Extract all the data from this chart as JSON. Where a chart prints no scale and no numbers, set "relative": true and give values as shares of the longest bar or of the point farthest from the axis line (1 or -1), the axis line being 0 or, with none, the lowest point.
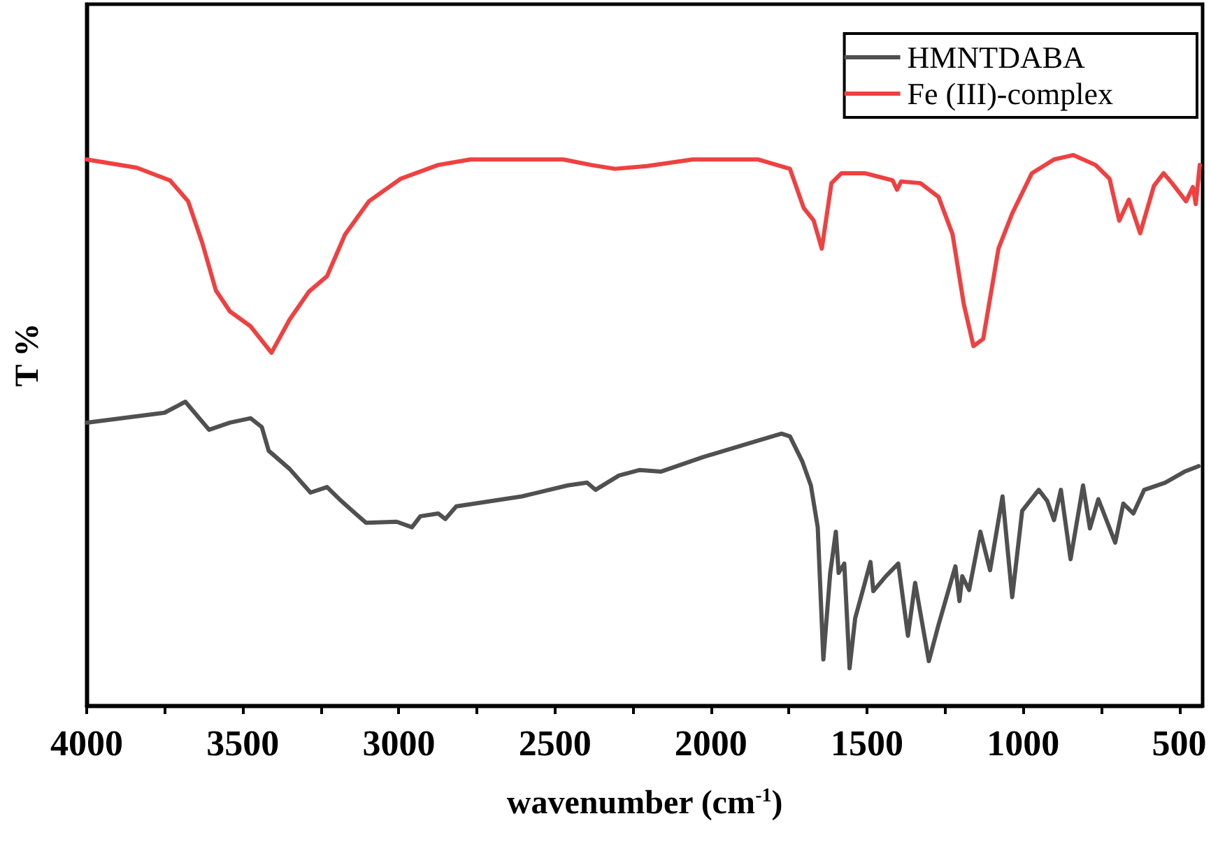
{
  "chart_data": {
    "type": "line",
    "xlabel": "wavenumber (cm$^{-1}$)",
    "ylabel": "T %",
    "relative": true,
    "legend": "top right",
    "marker": "none",
    "line_style": "solid",
    "grid": false,
    "xlim": [
      4000,
      425
    ],
    "xticks": [
      4000,
      {
        "value": 3750,
        "label": null
      },
      3500,
      {
        "value": 3250,
        "label": null
      },
      3000,
      {
        "value": 2750,
        "label": null
      },
      2500,
      {
        "value": 2250,
        "label": null
      },
      2000,
      {
        "value": 1750,
        "label": null
      },
      1500,
      {
        "value": 1250,
        "label": null
      },
      1000,
      {
        "value": 750,
        "label": null
      },
      500
    ],
    "series": [
      {
        "name": "HMNTDABA",
        "color": "#505050",
        "x": [
          4000,
          3751,
          3684,
          3608,
          3541,
          3475,
          3439,
          3417,
          3350,
          3283,
          3230,
          3185,
          3105,
          3007,
          2958,
          2931,
          2874,
          2851,
          2816,
          2606,
          2459,
          2397,
          2370,
          2295,
          2228,
          2161,
          2028,
          1881,
          1774,
          1747,
          1707,
          1680,
          1658,
          1640,
          1618,
          1600,
          1591,
          1573,
          1556,
          1538,
          1507,
          1489,
          1480,
          1440,
          1400,
          1369,
          1346,
          1302,
          1271,
          1217,
          1204,
          1195,
          1173,
          1137,
          1106,
          1066,
          1035,
          1003,
          950,
          923,
          901,
          879,
          848,
          808,
          786,
          759,
          705,
          679,
          647,
          612,
          545,
          483,
          438
        ],
        "values": [
          0.514,
          0.532,
          0.552,
          0.501,
          0.514,
          0.522,
          0.506,
          0.463,
          0.43,
          0.387,
          0.397,
          0.372,
          0.332,
          0.334,
          0.324,
          0.344,
          0.349,
          0.339,
          0.362,
          0.38,
          0.4,
          0.405,
          0.392,
          0.418,
          0.428,
          0.425,
          0.451,
          0.476,
          0.494,
          0.489,
          0.443,
          0.4,
          0.324,
          0.084,
          0.241,
          0.316,
          0.241,
          0.258,
          0.068,
          0.159,
          0.223,
          0.261,
          0.208,
          0.235,
          0.258,
          0.127,
          0.223,
          0.081,
          0.147,
          0.253,
          0.19,
          0.235,
          0.21,
          0.316,
          0.246,
          0.38,
          0.197,
          0.354,
          0.392,
          0.372,
          0.337,
          0.392,
          0.266,
          0.4,
          0.322,
          0.375,
          0.296,
          0.367,
          0.349,
          0.392,
          0.405,
          0.425,
          0.435
        ]
      },
      {
        "name": "Fe (III)-complex",
        "color": "#f04040",
        "x": [
          4000,
          3840,
          3733,
          3675,
          3630,
          3586,
          3541,
          3475,
          3408,
          3350,
          3288,
          3230,
          3172,
          3096,
          2994,
          2874,
          2771,
          2473,
          2384,
          2308,
          2206,
          2059,
          1850,
          1747,
          1703,
          1671,
          1645,
          1614,
          1582,
          1507,
          1418,
          1404,
          1391,
          1329,
          1271,
          1226,
          1190,
          1159,
          1128,
          1079,
          1035,
          972,
          901,
          839,
          768,
          723,
          692,
          661,
          625,
          581,
          550,
          523,
          478,
          456,
          447,
          434
        ],
        "values": [
          0.992,
          0.977,
          0.954,
          0.916,
          0.841,
          0.754,
          0.716,
          0.689,
          0.641,
          0.701,
          0.752,
          0.78,
          0.856,
          0.916,
          0.957,
          0.982,
          0.992,
          0.992,
          0.982,
          0.975,
          0.98,
          0.992,
          0.992,
          0.975,
          0.904,
          0.881,
          0.83,
          0.949,
          0.967,
          0.967,
          0.954,
          0.937,
          0.952,
          0.949,
          0.924,
          0.856,
          0.729,
          0.653,
          0.666,
          0.83,
          0.894,
          0.967,
          0.992,
          1,
          0.982,
          0.957,
          0.881,
          0.919,
          0.858,
          0.944,
          0.967,
          0.949,
          0.916,
          0.942,
          0.911,
          0.982
        ]
      }
    ]
  }
}
